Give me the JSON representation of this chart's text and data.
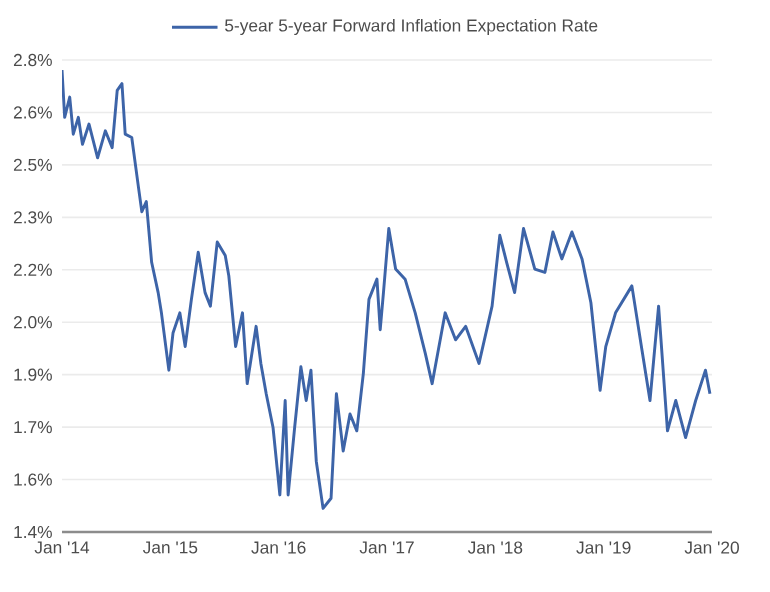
{
  "chart_data": {
    "type": "line",
    "grid": "y",
    "legend": "top",
    "xlim": [
      "2014-01-01",
      "2020-01-01"
    ],
    "xticks": [
      {
        "value": "2014-01",
        "label": "Jan '14"
      },
      {
        "value": "2015-01",
        "label": "Jan '15"
      },
      {
        "value": "2016-01",
        "label": "Jan '16"
      },
      {
        "value": "2017-01",
        "label": "Jan '17"
      },
      {
        "value": "2018-01",
        "label": "Jan '18"
      },
      {
        "value": "2019-01",
        "label": "Jan '19"
      },
      {
        "value": "2020-01",
        "label": "Jan '20"
      }
    ],
    "ylim": [
      1.4,
      2.8
    ],
    "yticks": [
      {
        "value": 1.4,
        "label": "1.4%"
      },
      {
        "value": 1.5556,
        "label": "1.6%"
      },
      {
        "value": 1.7111,
        "label": "1.7%"
      },
      {
        "value": 1.8667,
        "label": "1.9%"
      },
      {
        "value": 2.0222,
        "label": "2.0%"
      },
      {
        "value": 2.1778,
        "label": "2.2%"
      },
      {
        "value": 2.3333,
        "label": "2.3%"
      },
      {
        "value": 2.4889,
        "label": "2.5%"
      },
      {
        "value": 2.6444,
        "label": "2.6%"
      },
      {
        "value": 2.8,
        "label": "2.8%"
      }
    ],
    "x": [
      "2014-01-01",
      "2014-01-10",
      "2014-01-27",
      "2014-02-08",
      "2014-02-25",
      "2014-03-11",
      "2014-04-02",
      "2014-05-01",
      "2014-05-27",
      "2014-06-19",
      "2014-07-06",
      "2014-07-22",
      "2014-08-02",
      "2014-08-24",
      "2014-09-16",
      "2014-09-27",
      "2014-10-12",
      "2014-10-30",
      "2014-11-21",
      "2014-12-02",
      "2014-12-27",
      "2015-01-10",
      "2015-02-02",
      "2015-02-20",
      "2015-03-13",
      "2015-04-05",
      "2015-04-28",
      "2015-05-16",
      "2015-06-08",
      "2015-07-05",
      "2015-07-17",
      "2015-08-09",
      "2015-09-01",
      "2015-09-17",
      "2015-10-17",
      "2015-11-02",
      "2015-11-20",
      "2015-12-13",
      "2016-01-05",
      "2016-01-23",
      "2016-02-02",
      "2016-02-24",
      "2016-03-16",
      "2016-04-03",
      "2016-04-19",
      "2016-05-07",
      "2016-05-30",
      "2016-06-26",
      "2016-07-14",
      "2016-08-06",
      "2016-08-29",
      "2016-09-21",
      "2016-10-13",
      "2016-11-01",
      "2016-11-28",
      "2016-12-09",
      "2016-12-20",
      "2017-01-07",
      "2017-01-30",
      "2017-03-03",
      "2017-04-06",
      "2017-05-10",
      "2017-06-02",
      "2017-07-16",
      "2017-08-20",
      "2017-09-23",
      "2017-11-07",
      "2017-12-21",
      "2018-01-16",
      "2018-02-08",
      "2018-03-07",
      "2018-04-06",
      "2018-05-14",
      "2018-06-17",
      "2018-07-14",
      "2018-08-13",
      "2018-09-16",
      "2018-10-20",
      "2018-11-19",
      "2018-12-20",
      "2019-01-08",
      "2019-02-10",
      "2019-04-06",
      "2019-05-10",
      "2019-06-06",
      "2019-07-05",
      "2019-08-04",
      "2019-09-01",
      "2019-10-04",
      "2019-11-07",
      "2019-12-10",
      "2019-12-25"
    ],
    "series": [
      {
        "name": "5-year 5-year Forward Inflation Expectation Rate",
        "color": "#3d64a8",
        "values": [
          2.77,
          2.63,
          2.69,
          2.58,
          2.63,
          2.55,
          2.61,
          2.51,
          2.59,
          2.54,
          2.71,
          2.73,
          2.58,
          2.57,
          2.42,
          2.35,
          2.38,
          2.2,
          2.11,
          2.05,
          1.88,
          1.99,
          2.05,
          1.95,
          2.09,
          2.23,
          2.11,
          2.07,
          2.26,
          2.22,
          2.16,
          1.95,
          2.05,
          1.84,
          2.01,
          1.9,
          1.81,
          1.71,
          1.51,
          1.79,
          1.51,
          1.71,
          1.89,
          1.79,
          1.88,
          1.61,
          1.47,
          1.5,
          1.81,
          1.64,
          1.75,
          1.7,
          1.87,
          2.09,
          2.15,
          2.0,
          2.11,
          2.3,
          2.18,
          2.15,
          2.05,
          1.93,
          1.84,
          2.05,
          1.97,
          2.01,
          1.9,
          2.07,
          2.28,
          2.2,
          2.11,
          2.3,
          2.18,
          2.17,
          2.29,
          2.21,
          2.29,
          2.21,
          2.08,
          1.82,
          1.95,
          2.05,
          2.13,
          1.94,
          1.79,
          2.07,
          1.7,
          1.79,
          1.68,
          1.79,
          1.88,
          1.81
        ]
      }
    ]
  }
}
